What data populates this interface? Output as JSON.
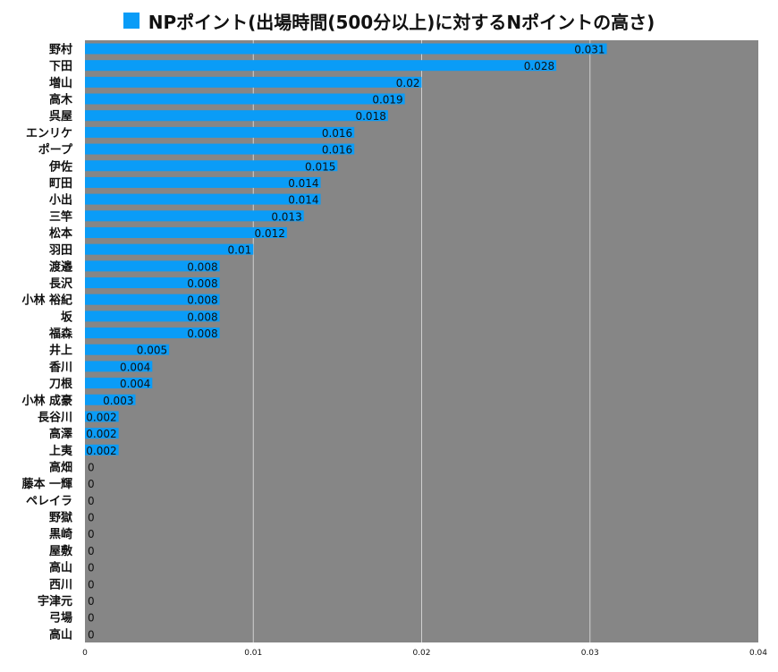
{
  "chart_data": {
    "type": "bar",
    "orientation": "horizontal",
    "series": [
      {
        "name": "NPポイント(出場時間(500分以上)に対するNポイントの高さ)",
        "color": "#0a9cf7",
        "values": [
          0.031,
          0.028,
          0.02,
          0.019,
          0.018,
          0.016,
          0.016,
          0.015,
          0.014,
          0.014,
          0.013,
          0.012,
          0.01,
          0.008,
          0.008,
          0.008,
          0.008,
          0.008,
          0.005,
          0.004,
          0.004,
          0.003,
          0.002,
          0.002,
          0.002,
          0,
          0,
          0,
          0,
          0,
          0,
          0,
          0,
          0,
          0,
          0
        ],
        "labels": [
          "0.031",
          "0.028",
          "0.02",
          "0.019",
          "0.018",
          "0.016",
          "0.016",
          "0.015",
          "0.014",
          "0.014",
          "0.013",
          "0.012",
          "0.01",
          "0.008",
          "0.008",
          "0.008",
          "0.008",
          "0.008",
          "0.005",
          "0.004",
          "0.004",
          "0.003",
          "0.002",
          "0.002",
          "0.002",
          "0",
          "0",
          "0",
          "0",
          "0",
          "0",
          "0",
          "0",
          "0",
          "0",
          "0"
        ]
      }
    ],
    "categories": [
      "野村",
      "下田",
      "増山",
      "高木",
      "呉屋",
      "エンリケ",
      "ポープ",
      "伊佐",
      "町田",
      "小出",
      "三竿",
      "松本",
      "羽田",
      "渡邉",
      "長沢",
      "小林 裕紀",
      "坂",
      "福森",
      "井上",
      "香川",
      "刀根",
      "小林 成豪",
      "長谷川",
      "高澤",
      "上夷",
      "高畑",
      "藤本 一輝",
      "ペレイラ",
      "野獄",
      "黒崎",
      "屋敷",
      "高山",
      "西川",
      "宇津元",
      "弓場",
      "高山"
    ],
    "xlim": [
      0,
      0.04
    ],
    "x_ticks": [
      "0",
      "0.01",
      "0.02",
      "0.03",
      "0.04"
    ],
    "grid": true,
    "legend_position": "top",
    "plot_background": "#868686"
  }
}
